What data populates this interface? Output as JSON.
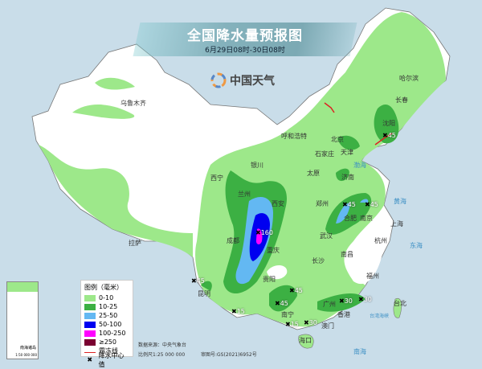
{
  "header": {
    "title": "全国降水量预报图",
    "subtitle": "6月29日08时-30日08时",
    "logo_text": "中国天气"
  },
  "legend": {
    "title": "图例（毫米）",
    "items": [
      {
        "label": "0-10",
        "color": "#9de88a"
      },
      {
        "label": "10-25",
        "color": "#3cb043"
      },
      {
        "label": "25-50",
        "color": "#63b8f2"
      },
      {
        "label": "50-100",
        "color": "#0000f0"
      },
      {
        "label": "100-250",
        "color": "#ff00ff"
      },
      {
        "label": "≥250",
        "color": "#7a0030"
      }
    ],
    "frost_line": "霜冻线",
    "rain_center": "降水中心值"
  },
  "notes": {
    "source": "数据来源：中央气象台",
    "scale": "比例尺1:25 000 000",
    "approval": "审图号:GS(2021)6952号"
  },
  "inset": {
    "label": "南海诸岛",
    "scale": "1:50 000 000"
  },
  "cities": [
    "乌鲁木齐",
    "拉萨",
    "西宁",
    "兰州",
    "银川",
    "呼和浩特",
    "西安",
    "成都",
    "重庆",
    "贵阳",
    "昆明",
    "南宁",
    "海口",
    "太原",
    "石家庄",
    "北京",
    "天津",
    "济南",
    "郑州",
    "武汉",
    "长沙",
    "南昌",
    "合肥",
    "南京",
    "上海",
    "杭州",
    "福州",
    "台北",
    "广州",
    "香港",
    "澳门",
    "沈阳",
    "长春",
    "哈尔滨"
  ],
  "seas": [
    "渤海",
    "黄海",
    "东海",
    "台湾海峡",
    "南海"
  ],
  "rain_centers": [
    "45",
    "160",
    "45",
    "45",
    "45",
    "15",
    "45",
    "45",
    "15",
    "30",
    "30",
    "30"
  ],
  "colors": {
    "sea": "#c9dde9",
    "land": "#ffffff",
    "border": "#8a8a8a"
  }
}
